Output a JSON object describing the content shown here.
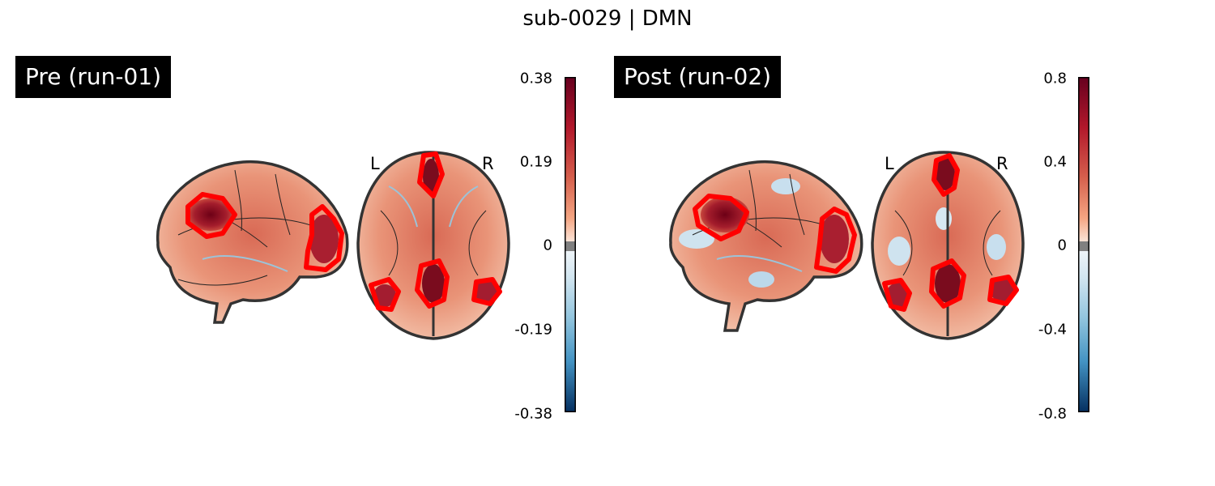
{
  "figure": {
    "title": "sub-0029 | DMN"
  },
  "panels": [
    {
      "label": "Pre (run-01)",
      "orientation": {
        "left": "L",
        "right": "R"
      },
      "colorbar": {
        "ticks": [
          "0.38",
          "0.19",
          "0",
          "-0.19",
          "-0.38"
        ],
        "colormap": "RdBu_r",
        "range": [
          -0.38,
          0.38
        ]
      }
    },
    {
      "label": "Post (run-02)",
      "orientation": {
        "left": "L",
        "right": "R"
      },
      "colorbar": {
        "ticks": [
          "0.8",
          "0.4",
          "0",
          "-0.4",
          "-0.8"
        ],
        "colormap": "RdBu_r",
        "range": [
          -0.8,
          0.8
        ]
      }
    }
  ],
  "colors": {
    "contour": "#ff0000",
    "outline": "#333333",
    "hot": "#8b0a1f",
    "warm": "#e3836a",
    "cool": "#92c5de"
  }
}
